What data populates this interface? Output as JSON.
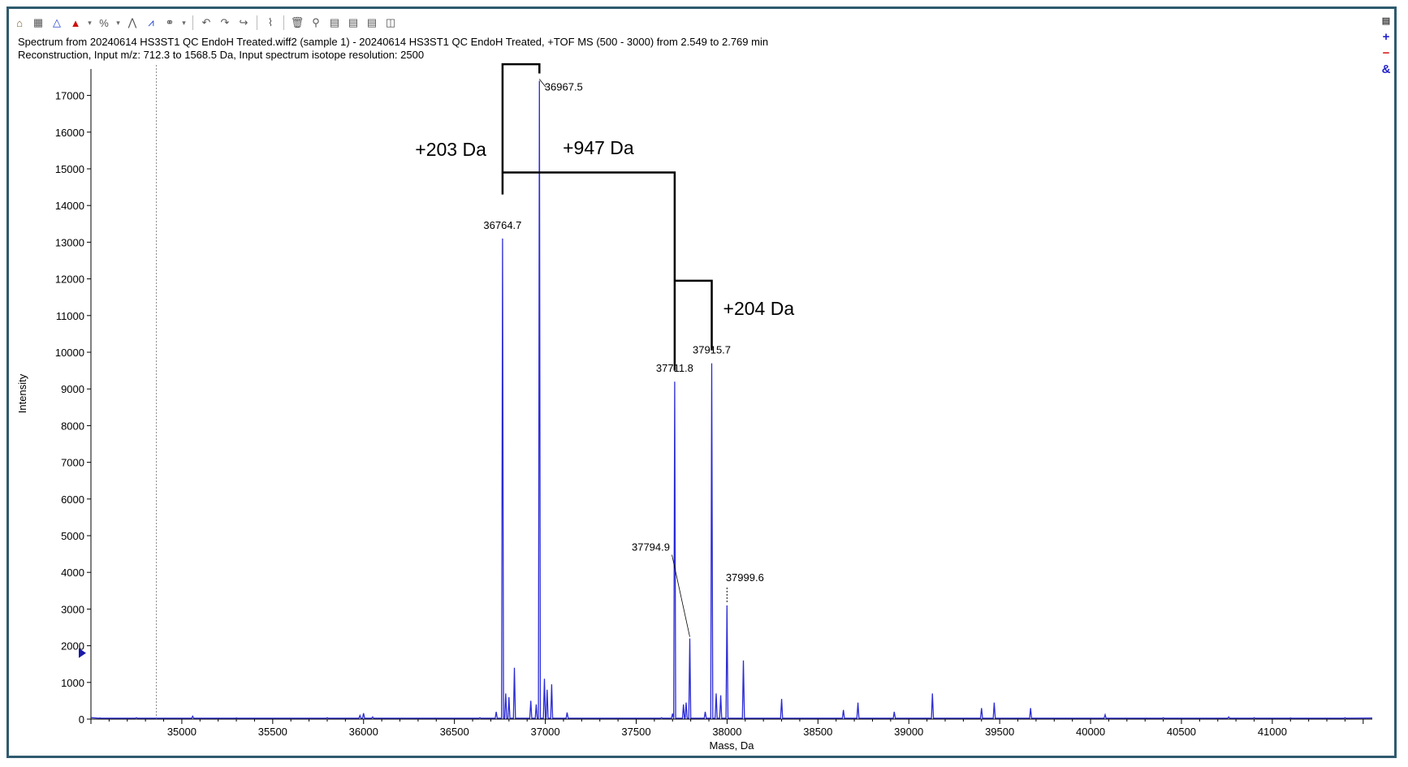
{
  "header": {
    "line1": "Spectrum from 20240614 HS3ST1 QC EndoH Treated.wiff2 (sample 1) - 20240614 HS3ST1 QC EndoH Treated, +TOF MS (500 - 3000) from 2.549 to 2.769 min",
    "line2": "Reconstruction,  Input m/z: 712.3 to 1568.5 Da, Input spectrum isotope resolution: 2500"
  },
  "toolbar": {
    "icons": [
      "home-icon",
      "table-icon",
      "draw-icon",
      "arrow-up-icon",
      "dropdown-icon",
      "percent-icon",
      "dropdown-icon",
      "peak-label-icon",
      "spectrum-icon",
      "link-icon",
      "dropdown-icon",
      "undo-icon",
      "redo-icon",
      "redo-alt-icon",
      "threshold-icon",
      "trash-icon",
      "zoom-icon",
      "grid-icon",
      "grid-icon",
      "grid-icon",
      "compare-icon"
    ]
  },
  "side_tools": {
    "add": "+",
    "remove": "−",
    "link": "&"
  },
  "chart_data": {
    "type": "line",
    "xlabel": "Mass, Da",
    "ylabel": "Intensity",
    "xlim": [
      34500,
      41550
    ],
    "ylim": [
      0,
      17500
    ],
    "xticks": [
      35000,
      35500,
      36000,
      36500,
      37000,
      37500,
      38000,
      38500,
      39000,
      39500,
      40000,
      40500,
      41000
    ],
    "yticks": [
      0,
      1000,
      2000,
      3000,
      4000,
      5000,
      6000,
      7000,
      8000,
      9000,
      10000,
      11000,
      12000,
      13000,
      14000,
      15000,
      16000,
      17000
    ],
    "grid": false,
    "color": "#2b2bd6",
    "cursor_x": 34860,
    "peaks": [
      {
        "x": 34550,
        "y": 30
      },
      {
        "x": 34750,
        "y": 40
      },
      {
        "x": 35060,
        "y": 80
      },
      {
        "x": 35300,
        "y": 30
      },
      {
        "x": 35800,
        "y": 40
      },
      {
        "x": 35980,
        "y": 100
      },
      {
        "x": 36000,
        "y": 160
      },
      {
        "x": 36050,
        "y": 60
      },
      {
        "x": 36640,
        "y": 40
      },
      {
        "x": 36730,
        "y": 200
      },
      {
        "x": 36764.7,
        "y": 13100
      },
      {
        "x": 36782,
        "y": 700
      },
      {
        "x": 36800,
        "y": 600
      },
      {
        "x": 36830,
        "y": 1400
      },
      {
        "x": 36920,
        "y": 500
      },
      {
        "x": 36950,
        "y": 400
      },
      {
        "x": 36967.5,
        "y": 17400
      },
      {
        "x": 36995,
        "y": 1100
      },
      {
        "x": 37010,
        "y": 800
      },
      {
        "x": 37035,
        "y": 950
      },
      {
        "x": 37120,
        "y": 180
      },
      {
        "x": 37640,
        "y": 40
      },
      {
        "x": 37700,
        "y": 150
      },
      {
        "x": 37711.8,
        "y": 9200
      },
      {
        "x": 37760,
        "y": 400
      },
      {
        "x": 37775,
        "y": 450
      },
      {
        "x": 37794.9,
        "y": 2200
      },
      {
        "x": 37880,
        "y": 200
      },
      {
        "x": 37915.7,
        "y": 9700
      },
      {
        "x": 37940,
        "y": 700
      },
      {
        "x": 37965,
        "y": 650
      },
      {
        "x": 37999.6,
        "y": 3100
      },
      {
        "x": 38090,
        "y": 1600
      },
      {
        "x": 38300,
        "y": 550
      },
      {
        "x": 38640,
        "y": 250
      },
      {
        "x": 38720,
        "y": 450
      },
      {
        "x": 38920,
        "y": 200
      },
      {
        "x": 39130,
        "y": 700
      },
      {
        "x": 39400,
        "y": 300
      },
      {
        "x": 39470,
        "y": 450
      },
      {
        "x": 39670,
        "y": 300
      },
      {
        "x": 40080,
        "y": 120
      },
      {
        "x": 40400,
        "y": 40
      },
      {
        "x": 40760,
        "y": 60
      },
      {
        "x": 40900,
        "y": 40
      },
      {
        "x": 41100,
        "y": 30
      },
      {
        "x": 41400,
        "y": 40
      }
    ],
    "peak_labels": [
      {
        "x": 36764.7,
        "y": 13100,
        "text": "36764.7"
      },
      {
        "x": 36967.5,
        "y": 17400,
        "text": "36967.5"
      },
      {
        "x": 37711.8,
        "y": 9200,
        "text": "37711.8"
      },
      {
        "x": 37915.7,
        "y": 9700,
        "text": "37915.7"
      },
      {
        "x": 37794.9,
        "y": 2200,
        "text": "37794.9"
      },
      {
        "x": 37999.6,
        "y": 3100,
        "text": "37999.6"
      }
    ],
    "annotations": [
      {
        "text": "+203 Da",
        "from": 36764.7,
        "to": 36967.5,
        "y": 17850
      },
      {
        "text": "+947 Da",
        "from": 36764.7,
        "to": 37711.8,
        "y": 14900
      },
      {
        "text": "+204 Da",
        "from": 37711.8,
        "to": 37915.7,
        "y": 11950
      }
    ]
  }
}
